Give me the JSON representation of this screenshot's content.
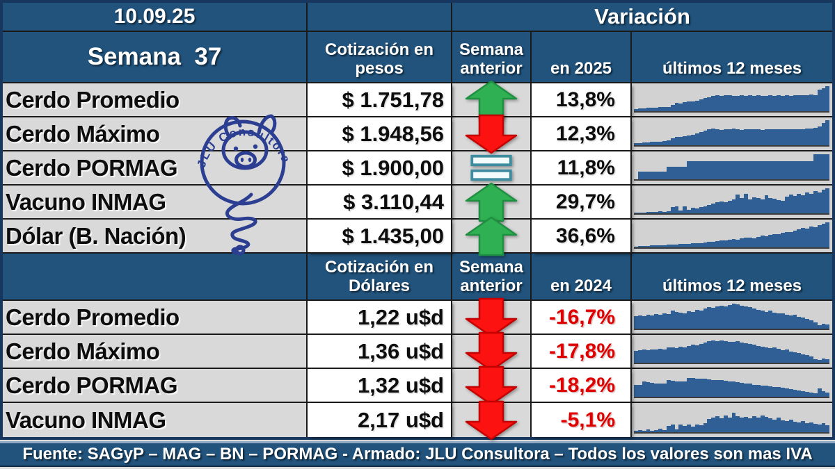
{
  "header": {
    "date": "10.09.25",
    "week": "Semana  37",
    "variation": "Variación"
  },
  "table_headers": {
    "s1_value_l1": "Cotización en",
    "s1_value_l2": "pesos",
    "s2_value_l1": "Cotización en",
    "s2_value_l2": "Dólares",
    "prev_l1": "Semana",
    "prev_l2": "anterior",
    "s1_ytd": "en 2025",
    "s2_ytd": "en 2024",
    "spark": "últimos 12 meses"
  },
  "footer": {
    "text": "Fuente: SAGyP – MAG – BN – PORMAG - Armado: JLU Consultora – Todos los valores son mas IVA"
  },
  "logo": {
    "arc_text": "JLU Consultora©"
  },
  "colors": {
    "header_blue": "#21537C",
    "border_navy": "#17375E",
    "grid_line": "#1A1A1A",
    "label_gray": "#D9D9D9",
    "spark_bg": "#D2D2D2",
    "spark_bar": "#2F5F94",
    "up_green": "#2FB053",
    "up_green_dark": "#1F8F41",
    "down_red": "#FD1212",
    "down_red_dark": "#C40000",
    "equal_teal": "#3E8CA0",
    "negative_red": "#DF0000",
    "logo_navy": "#2B3E91",
    "footer_bevel": "#8FA9C4"
  },
  "chart_data": {
    "type": "table",
    "title": "Variación",
    "date": "10.09.25",
    "week": 37,
    "spark_note": "sparklines = últimos 12 meses, bar values estimated relative 0-1",
    "sections": [
      {
        "unit": "pesos",
        "ytd_label": "en 2025",
        "rows": [
          {
            "label": "Cerdo Promedio",
            "value": 1751.78,
            "value_text": "$ 1.751,78",
            "trend": "up",
            "ytd_pct": 13.8,
            "ytd_text": "13,8%",
            "spark": [
              0.08,
              0.1,
              0.11,
              0.13,
              0.14,
              0.14,
              0.16,
              0.17,
              0.18,
              0.26,
              0.33,
              0.31,
              0.36,
              0.38,
              0.4,
              0.43,
              0.46,
              0.52,
              0.56,
              0.6,
              0.63,
              0.6,
              0.63,
              0.65,
              0.62,
              0.6,
              0.63,
              0.62,
              0.64,
              0.61,
              0.63,
              0.6,
              0.62,
              0.64,
              0.62,
              0.63,
              0.61,
              0.64,
              0.62,
              0.64,
              0.63,
              0.65,
              0.64,
              0.66,
              0.65,
              0.85,
              0.92,
              1.0
            ]
          },
          {
            "label": "Cerdo Máximo",
            "value": 1948.56,
            "value_text": "$ 1.948,56",
            "trend": "down",
            "ytd_pct": 12.3,
            "ytd_text": "12,3%",
            "spark": [
              0.07,
              0.09,
              0.11,
              0.12,
              0.13,
              0.14,
              0.15,
              0.17,
              0.2,
              0.28,
              0.34,
              0.33,
              0.37,
              0.39,
              0.41,
              0.46,
              0.53,
              0.58,
              0.63,
              0.66,
              0.63,
              0.62,
              0.65,
              0.64,
              0.66,
              0.64,
              0.62,
              0.64,
              0.65,
              0.63,
              0.64,
              0.62,
              0.63,
              0.64,
              0.65,
              0.63,
              0.65,
              0.63,
              0.64,
              0.65,
              0.63,
              0.65,
              0.67,
              0.66,
              0.7,
              0.76,
              0.88,
              1.0
            ]
          },
          {
            "label": "Cerdo PORMAG",
            "value": 1900.0,
            "value_text": "$ 1.900,00",
            "trend": "equal",
            "ytd_pct": 11.8,
            "ytd_text": "11,8%",
            "spark": [
              0.0,
              0.3,
              0.3,
              0.3,
              0.3,
              0.3,
              0.3,
              0.3,
              0.5,
              0.5,
              0.5,
              0.5,
              0.5,
              0.72,
              0.72,
              0.72,
              0.72,
              0.72,
              0.72,
              0.72,
              0.72,
              0.72,
              0.72,
              0.72,
              0.72,
              0.72,
              0.72,
              0.72,
              0.72,
              0.72,
              0.72,
              0.72,
              0.72,
              0.72,
              0.72,
              0.72,
              0.72,
              0.72,
              0.72,
              0.72,
              0.72,
              0.72,
              0.72,
              0.72,
              1.0,
              1.0,
              1.0,
              1.0
            ]
          },
          {
            "label": "Vacuno INMAG",
            "value": 3110.44,
            "value_text": "$ 3.110,44",
            "trend": "up",
            "ytd_pct": 29.7,
            "ytd_text": "29,7%",
            "spark": [
              0.02,
              0.03,
              0.04,
              0.05,
              0.05,
              0.06,
              0.07,
              0.06,
              0.09,
              0.24,
              0.27,
              0.12,
              0.29,
              0.14,
              0.21,
              0.19,
              0.24,
              0.28,
              0.33,
              0.38,
              0.45,
              0.48,
              0.44,
              0.5,
              0.55,
              0.74,
              0.6,
              0.77,
              0.56,
              0.64,
              0.6,
              0.55,
              0.71,
              0.6,
              0.57,
              0.52,
              0.49,
              0.67,
              0.74,
              0.7,
              0.79,
              0.72,
              0.84,
              0.77,
              0.89,
              0.84,
              0.94,
              1.0
            ]
          },
          {
            "label": "Dólar (B. Nación)",
            "value": 1435.0,
            "value_text": "$ 1.435,00",
            "trend": "up",
            "ytd_pct": 36.6,
            "ytd_text": "36,6%",
            "spark": [
              0.04,
              0.05,
              0.05,
              0.06,
              0.07,
              0.07,
              0.08,
              0.09,
              0.1,
              0.11,
              0.12,
              0.13,
              0.14,
              0.15,
              0.16,
              0.17,
              0.18,
              0.2,
              0.21,
              0.23,
              0.25,
              0.27,
              0.29,
              0.31,
              0.33,
              0.3,
              0.36,
              0.38,
              0.4,
              0.37,
              0.43,
              0.46,
              0.44,
              0.5,
              0.54,
              0.52,
              0.58,
              0.62,
              0.6,
              0.67,
              0.72,
              0.77,
              0.74,
              0.84,
              0.8,
              0.9,
              0.95,
              1.0
            ]
          }
        ]
      },
      {
        "unit": "u$d",
        "ytd_label": "en 2024",
        "rows": [
          {
            "label": "Cerdo Promedio",
            "value": 1.22,
            "value_text": "1,22 u$d",
            "trend": "down",
            "ytd_pct": -16.7,
            "ytd_text": "-16,7%",
            "spark": [
              0.5,
              0.52,
              0.5,
              0.55,
              0.52,
              0.57,
              0.55,
              0.6,
              0.58,
              0.71,
              0.67,
              0.64,
              0.62,
              0.7,
              0.66,
              0.74,
              0.72,
              0.8,
              0.85,
              0.82,
              0.88,
              0.92,
              0.9,
              0.95,
              1.0,
              0.96,
              0.92,
              0.88,
              0.85,
              0.8,
              0.76,
              0.72,
              0.68,
              0.72,
              0.65,
              0.6,
              0.62,
              0.55,
              0.52,
              0.55,
              0.48,
              0.44,
              0.4,
              0.34,
              0.25,
              0.14,
              0.2,
              0.17
            ]
          },
          {
            "label": "Cerdo Máximo",
            "value": 1.36,
            "value_text": "1,36 u$d",
            "trend": "down",
            "ytd_pct": -17.8,
            "ytd_text": "-17,8%",
            "spark": [
              0.48,
              0.5,
              0.52,
              0.5,
              0.54,
              0.52,
              0.56,
              0.54,
              0.6,
              0.62,
              0.58,
              0.64,
              0.62,
              0.68,
              0.72,
              0.7,
              0.76,
              0.8,
              0.85,
              0.88,
              0.85,
              0.9,
              0.87,
              0.84,
              0.82,
              0.85,
              0.8,
              0.78,
              0.75,
              0.72,
              0.68,
              0.65,
              0.62,
              0.58,
              0.6,
              0.55,
              0.5,
              0.52,
              0.45,
              0.42,
              0.38,
              0.34,
              0.3,
              0.24,
              0.14,
              0.1,
              0.18,
              0.13
            ]
          },
          {
            "label": "Cerdo PORMAG",
            "value": 1.32,
            "value_text": "1,32 u$d",
            "trend": "down",
            "ytd_pct": -18.2,
            "ytd_text": "-18,2%",
            "spark": [
              0.46,
              0.46,
              0.6,
              0.58,
              0.56,
              0.54,
              0.52,
              0.52,
              0.66,
              0.64,
              0.62,
              0.62,
              0.6,
              0.76,
              0.74,
              0.73,
              0.72,
              0.71,
              0.7,
              0.68,
              0.67,
              0.66,
              0.64,
              0.62,
              0.61,
              0.58,
              0.55,
              0.54,
              0.52,
              0.48,
              0.47,
              0.45,
              0.44,
              0.42,
              0.4,
              0.38,
              0.35,
              0.33,
              0.3,
              0.28,
              0.25,
              0.22,
              0.2,
              0.17,
              0.15,
              0.32,
              0.22,
              0.18
            ]
          },
          {
            "label": "Vacuno INMAG",
            "value": 2.17,
            "value_text": "2,17 u$d",
            "trend": "down",
            "ytd_pct": -5.1,
            "ytd_text": "-5,1%",
            "spark": [
              0.05,
              0.08,
              0.06,
              0.1,
              0.05,
              0.08,
              0.12,
              0.07,
              0.25,
              0.28,
              0.1,
              0.3,
              0.24,
              0.28,
              0.22,
              0.3,
              0.27,
              0.35,
              0.5,
              0.55,
              0.6,
              0.52,
              0.64,
              0.55,
              0.74,
              0.6,
              0.56,
              0.58,
              0.52,
              0.6,
              0.55,
              0.64,
              0.58,
              0.52,
              0.48,
              0.54,
              0.45,
              0.42,
              0.48,
              0.4,
              0.38,
              0.42,
              0.35,
              0.38,
              0.32,
              0.3,
              0.34,
              0.26
            ]
          }
        ]
      }
    ]
  }
}
